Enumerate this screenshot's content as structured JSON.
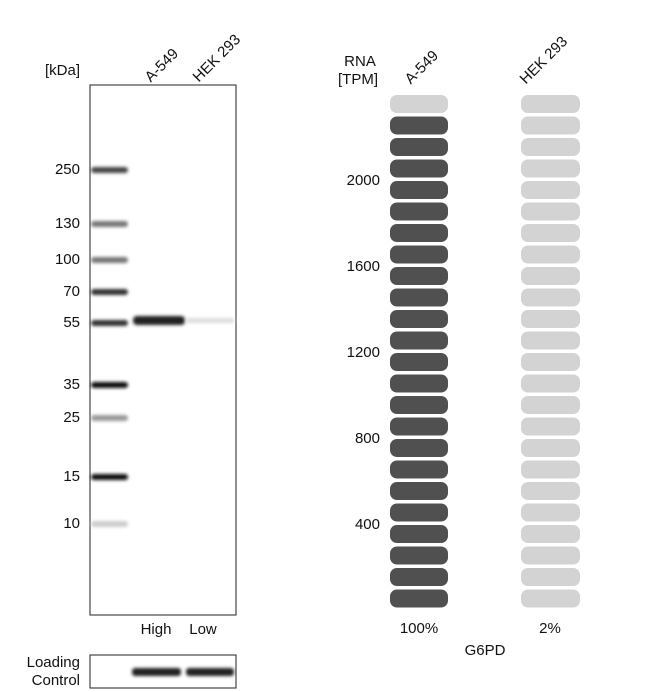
{
  "western_blot": {
    "unit_label": "[kDa]",
    "lanes": [
      "A-549",
      "HEK 293"
    ],
    "markers": [
      "250",
      "130",
      "100",
      "70",
      "55",
      "35",
      "25",
      "15",
      "10"
    ],
    "levels": [
      "High",
      "Low"
    ],
    "loading_control": [
      "Loading",
      "Control"
    ]
  },
  "rna": {
    "unit_label": [
      "RNA",
      "[TPM]"
    ],
    "samples": [
      "A-549",
      "HEK 293"
    ],
    "ticks": [
      "2000",
      "1600",
      "1200",
      "800",
      "400"
    ],
    "percentages": [
      "100%",
      "2%"
    ],
    "gene": "G6PD"
  }
}
